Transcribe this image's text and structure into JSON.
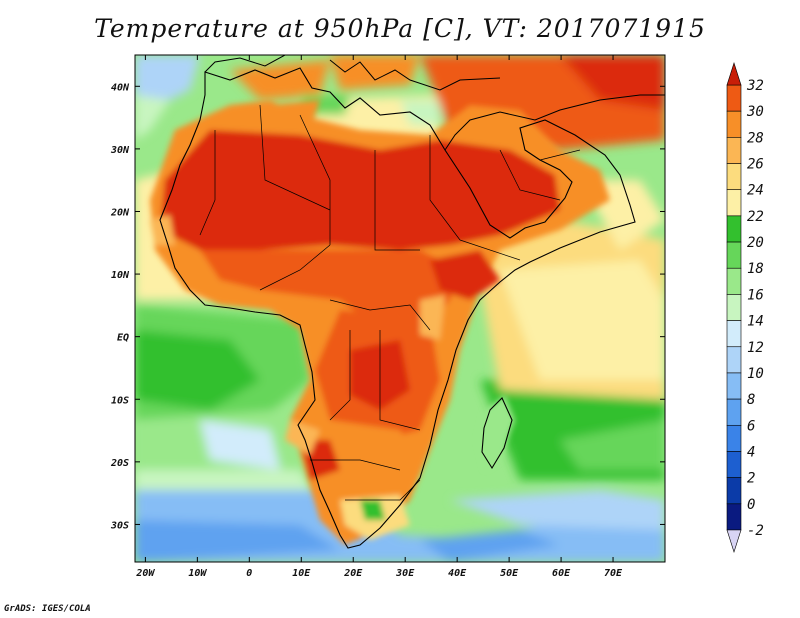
{
  "header": {
    "title": "Temperature at 950hPa [C], VT: 2017071915"
  },
  "footer": {
    "credit": "GrADS: IGES/COLA"
  },
  "map": {
    "projection": "latlon",
    "lon_range": [
      -22,
      80
    ],
    "lat_range": [
      -36,
      45
    ],
    "lon_ticks": [
      {
        "value": -20,
        "label": "20W"
      },
      {
        "value": -10,
        "label": "10W"
      },
      {
        "value": 0,
        "label": "0"
      },
      {
        "value": 10,
        "label": "10E"
      },
      {
        "value": 20,
        "label": "20E"
      },
      {
        "value": 30,
        "label": "30E"
      },
      {
        "value": 40,
        "label": "40E"
      },
      {
        "value": 50,
        "label": "50E"
      },
      {
        "value": 60,
        "label": "60E"
      },
      {
        "value": 70,
        "label": "70E"
      }
    ],
    "lat_ticks": [
      {
        "value": 40,
        "label": "40N"
      },
      {
        "value": 30,
        "label": "30N"
      },
      {
        "value": 20,
        "label": "20N"
      },
      {
        "value": 10,
        "label": "10N"
      },
      {
        "value": 0,
        "label": "EQ"
      },
      {
        "value": -10,
        "label": "10S"
      },
      {
        "value": -20,
        "label": "20S"
      },
      {
        "value": -30,
        "label": "30S"
      }
    ],
    "field": "temperature_950hPa_C",
    "coastline_color": "#000000"
  },
  "colorbar": {
    "levels": [
      -2,
      0,
      2,
      4,
      6,
      8,
      10,
      12,
      14,
      16,
      18,
      20,
      22,
      24,
      26,
      28,
      30,
      32
    ],
    "colors": [
      "#0a1a80",
      "#0b3ba8",
      "#1d5fd0",
      "#3a83e8",
      "#5ea2f0",
      "#86bdf5",
      "#aed4f8",
      "#d2ecfb",
      "#c8f5c0",
      "#9ae88a",
      "#66d65a",
      "#33c02e",
      "#fdf0a6",
      "#fcdc7e",
      "#fbb654",
      "#f78f28",
      "#ee5a14",
      "#dc2a0a"
    ],
    "under_color": "#d8d4f4",
    "over_color": "#c81e08"
  }
}
